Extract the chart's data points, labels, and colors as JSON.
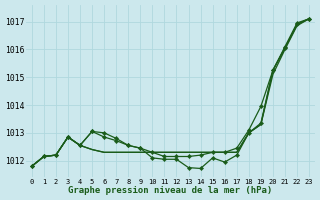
{
  "title": "Graphe pression niveau de la mer (hPa)",
  "bg_color": "#cce8ed",
  "grid_color": "#b0d8de",
  "line_color": "#1a5c1a",
  "x_labels": [
    "0",
    "1",
    "2",
    "3",
    "4",
    "5",
    "6",
    "7",
    "8",
    "9",
    "10",
    "11",
    "12",
    "13",
    "14",
    "15",
    "16",
    "17",
    "18",
    "19",
    "20",
    "21",
    "22",
    "23"
  ],
  "ylim": [
    1011.4,
    1017.6
  ],
  "yticks": [
    1012,
    1013,
    1014,
    1015,
    1016,
    1017
  ],
  "figsize": [
    3.2,
    2.0
  ],
  "series": [
    {
      "values": [
        1011.8,
        1012.15,
        1012.2,
        1012.85,
        1012.55,
        1013.05,
        1012.85,
        1012.72,
        1012.55,
        1012.45,
        1012.1,
        1012.05,
        1012.05,
        1011.75,
        1011.72,
        1012.1,
        1011.95,
        1012.2,
        1013.0,
        1013.35,
        1015.25,
        1016.05,
        1016.9,
        1017.1
      ],
      "markers": true
    },
    {
      "values": [
        1011.8,
        1012.15,
        1012.2,
        1012.85,
        1012.55,
        1013.05,
        1013.0,
        1012.8,
        1012.55,
        1012.45,
        1012.3,
        1012.15,
        1012.15,
        1012.15,
        1012.2,
        1012.3,
        1012.3,
        1012.45,
        1013.1,
        1013.95,
        1015.25,
        1016.1,
        1016.95,
        1017.1
      ],
      "markers": true
    },
    {
      "values": [
        1011.8,
        1012.15,
        1012.2,
        1012.85,
        1012.55,
        1012.4,
        1012.3,
        1012.3,
        1012.3,
        1012.3,
        1012.3,
        1012.3,
        1012.3,
        1012.3,
        1012.3,
        1012.3,
        1012.3,
        1012.3,
        1013.0,
        1013.3,
        1015.25,
        1016.05,
        1016.9,
        1017.1
      ],
      "markers": false
    },
    {
      "values": [
        1011.8,
        1012.15,
        1012.2,
        1012.85,
        1012.55,
        1012.4,
        1012.3,
        1012.3,
        1012.3,
        1012.3,
        1012.3,
        1012.3,
        1012.3,
        1012.3,
        1012.3,
        1012.3,
        1012.3,
        1012.3,
        1013.0,
        1013.3,
        1015.1,
        1016.0,
        1016.85,
        1017.1
      ],
      "markers": false
    }
  ]
}
